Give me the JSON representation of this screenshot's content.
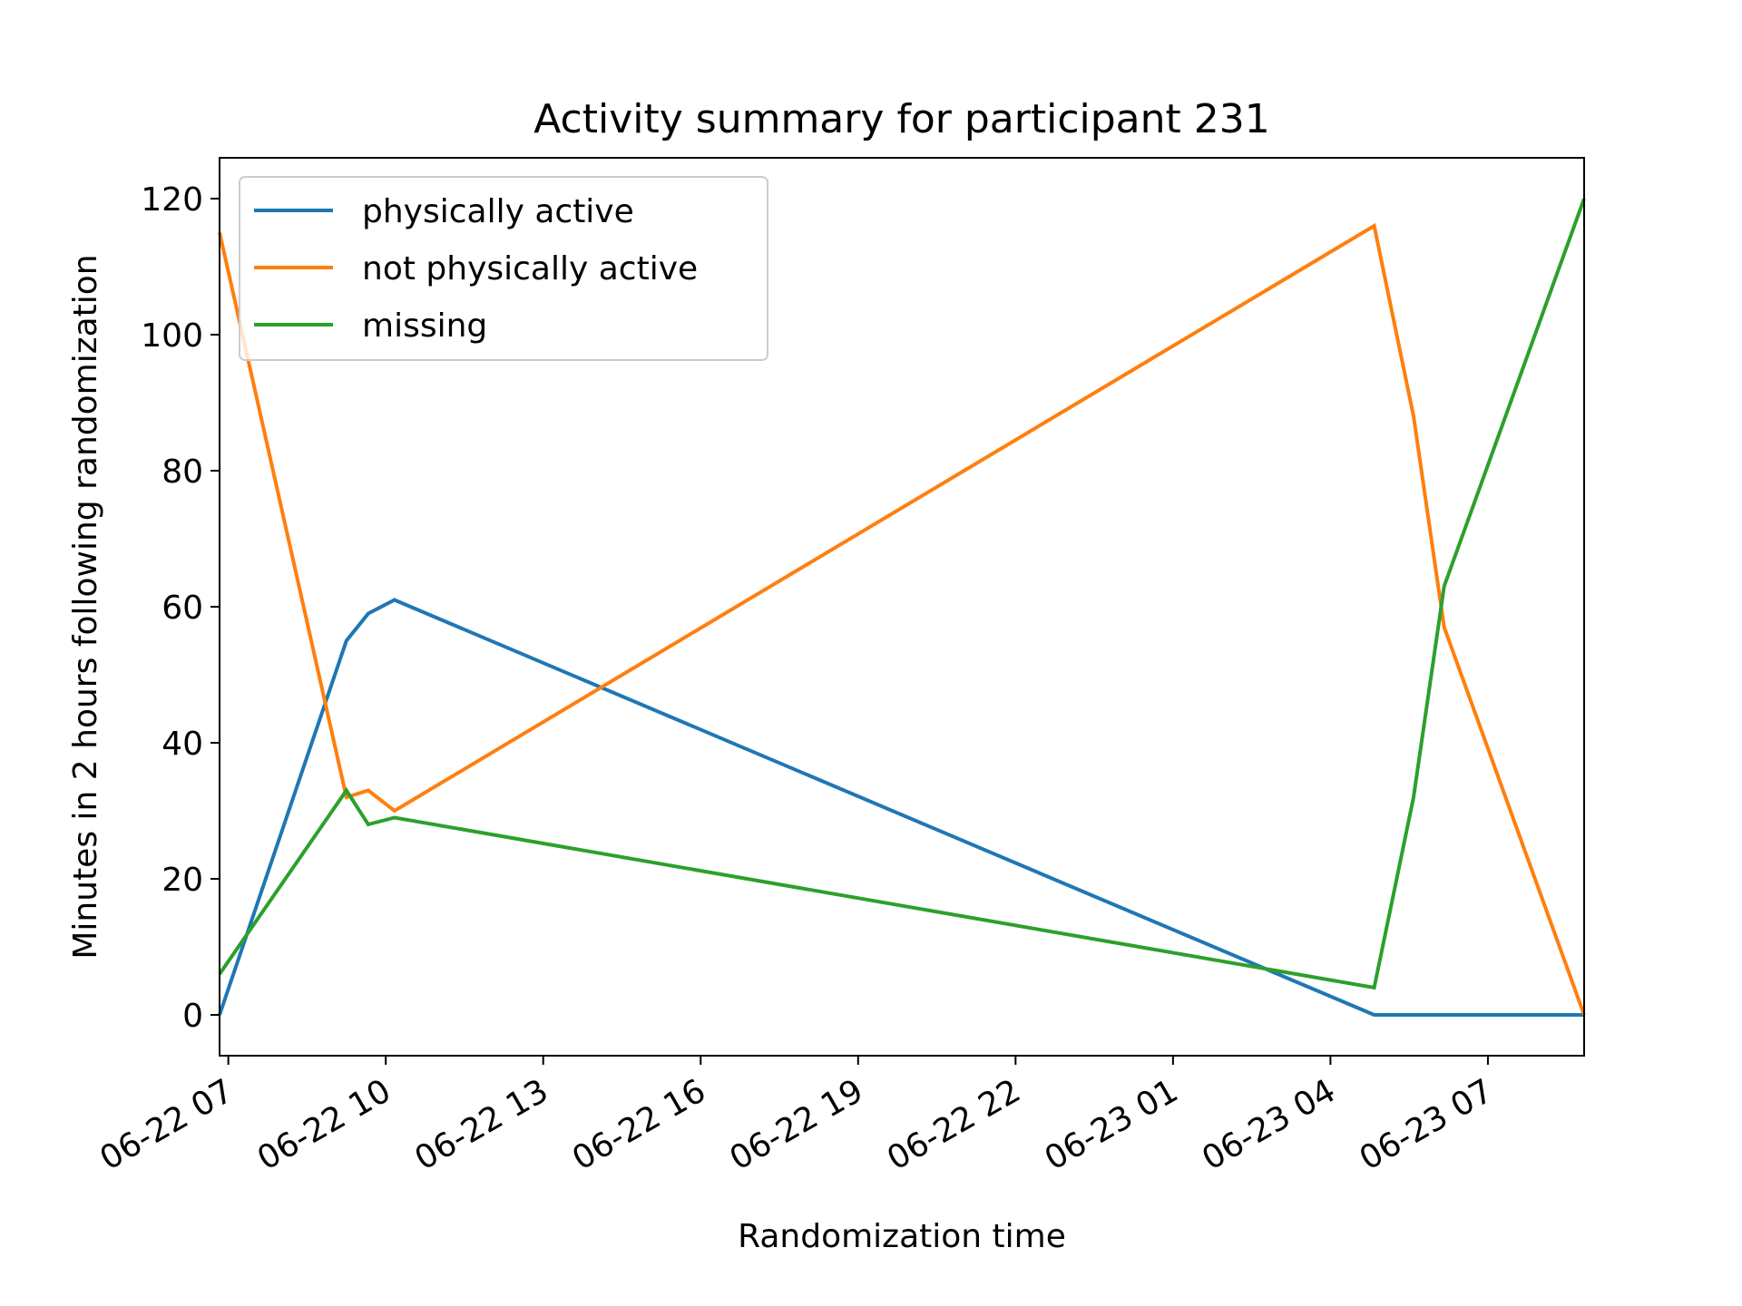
{
  "chart_data": {
    "type": "line",
    "title": "Activity summary for participant 231",
    "xlabel": "Randomization time",
    "ylabel": "Minutes in 2 hours following randomization",
    "x": [
      "06-22 06:50",
      "06-22 09:15",
      "06-22 09:40",
      "06-22 10:10",
      "06-23 04:50",
      "06-23 05:35",
      "06-23 06:10",
      "06-23 08:50"
    ],
    "xlim": [
      "06-22 06:50",
      "06-23 08:50"
    ],
    "xticks": [
      "06-22 07",
      "06-22 10",
      "06-22 13",
      "06-22 16",
      "06-22 19",
      "06-22 22",
      "06-23 01",
      "06-23 04",
      "06-23 07"
    ],
    "ylim": [
      -6,
      126
    ],
    "yticks": [
      0,
      20,
      40,
      60,
      80,
      100,
      120
    ],
    "series": [
      {
        "name": "physically active",
        "color": "#1f77b4",
        "values": [
          0,
          55,
          59,
          61,
          0,
          0,
          0,
          0
        ]
      },
      {
        "name": "not physically active",
        "color": "#ff7f0e",
        "values": [
          115,
          32,
          33,
          30,
          116,
          88,
          57,
          0
        ]
      },
      {
        "name": "missing",
        "color": "#2ca02c",
        "values": [
          6,
          33,
          28,
          29,
          4,
          32,
          63,
          120
        ]
      }
    ],
    "legend": "upper left",
    "grid": false
  }
}
